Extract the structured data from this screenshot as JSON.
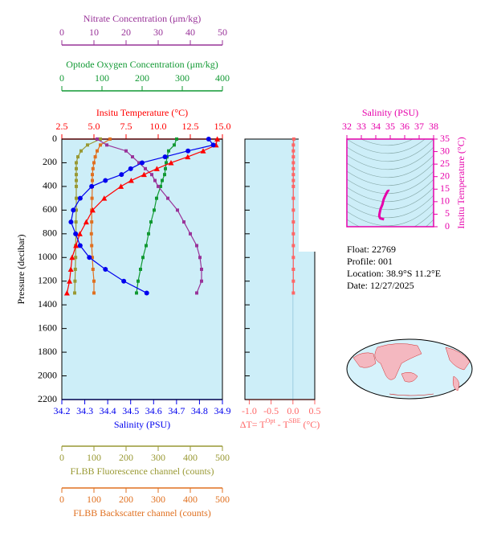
{
  "chart_data": {
    "type": "profile",
    "y_label": "Pressure (decibar)",
    "ylim": [
      0,
      2200
    ],
    "yticks": [
      0,
      200,
      400,
      600,
      800,
      1000,
      1200,
      1400,
      1600,
      1800,
      2000,
      2200
    ],
    "pressure": [
      0,
      50,
      100,
      150,
      200,
      250,
      300,
      350,
      400,
      500,
      600,
      700,
      800,
      900,
      1000,
      1100,
      1200,
      1300
    ],
    "axes": [
      {
        "label": "Nitrate Concentration (μm/kg)",
        "color": "#993399",
        "xlim": [
          0,
          50
        ],
        "xticks": [
          0,
          10,
          20,
          30,
          40,
          50
        ],
        "values": [
          11,
          14,
          20,
          22,
          24,
          26,
          28,
          29,
          30,
          33,
          36,
          38,
          40,
          42,
          43,
          43.5,
          43.5,
          42
        ]
      },
      {
        "label": "Optode Oxygen Concentration (μm/kg)",
        "color": "#119933",
        "xlim": [
          0,
          400
        ],
        "xticks": [
          0,
          100,
          200,
          300,
          400
        ],
        "values": [
          286,
          280,
          266,
          262,
          260,
          258,
          256,
          250,
          246,
          236,
          230,
          222,
          216,
          210,
          202,
          196,
          190,
          186
        ]
      },
      {
        "label": "Insitu Temperature (°C)",
        "color": "#ff0000",
        "xlim": [
          2.5,
          15
        ],
        "xticks": [
          2.5,
          {
            "value": 5,
            "label": "5.0"
          },
          7.5,
          {
            "value": 10,
            "label": "10.0"
          },
          12.5,
          {
            "value": 15,
            "label": "15.0"
          }
        ],
        "values": [
          14.6,
          14.5,
          13.5,
          12.3,
          11.0,
          9.9,
          8.9,
          7.9,
          7.1,
          5.8,
          4.9,
          4.4,
          3.9,
          3.6,
          3.3,
          3.2,
          3.1,
          2.9
        ]
      },
      {
        "label": "Salinity (PSU)",
        "color": "#0000ee",
        "xlim": [
          34.2,
          34.9
        ],
        "xticks": [
          34.2,
          34.3,
          34.4,
          34.5,
          34.6,
          34.7,
          34.8,
          34.9
        ],
        "values": [
          34.84,
          34.86,
          34.75,
          34.65,
          34.55,
          34.5,
          34.46,
          34.39,
          34.33,
          34.28,
          34.25,
          34.24,
          34.26,
          34.28,
          34.32,
          34.39,
          34.47,
          34.57
        ]
      },
      {
        "label": "FLBB Fluorescence channel (counts)",
        "color": "#999933",
        "xlim": [
          0,
          500
        ],
        "xticks": [
          0,
          100,
          200,
          300,
          400,
          500
        ],
        "values": [
          120,
          80,
          60,
          50,
          45,
          45,
          45,
          45,
          45,
          45,
          45,
          44,
          44,
          43,
          43,
          42,
          41,
          40
        ]
      },
      {
        "label": "FLBB Backscatter channel (counts)",
        "color": "#e07020",
        "xlim": [
          0,
          500
        ],
        "xticks": [
          0,
          100,
          200,
          300,
          400,
          500
        ],
        "values": [
          150,
          120,
          110,
          104,
          100,
          97,
          95,
          95,
          95,
          94,
          93,
          93,
          92,
          93,
          95,
          97,
          100,
          100
        ]
      }
    ],
    "delta_t": {
      "label_parts": [
        "ΔT= T",
        "Opt",
        " - T",
        "SBE",
        " (°C)"
      ],
      "color": "#ff6666",
      "xlim": [
        -1.1,
        0.5
      ],
      "xticks": [
        {
          "value": -1,
          "label": "-1.0"
        },
        -0.5,
        {
          "value": 0,
          "label": "0.0"
        },
        0.5
      ],
      "values": [
        0.02,
        0.01,
        0.01,
        0.01,
        0.01,
        0.01,
        0.01,
        0.01,
        0.01,
        0.01,
        0.01,
        0.01,
        0.01,
        0.01,
        0.01,
        0.01,
        0.01,
        0.01
      ]
    },
    "ts": {
      "x_label": "Salinity (PSU)",
      "y_label": "Insitu Temperature (°C)",
      "color": "#e600aa",
      "xlim": [
        32,
        38
      ],
      "xticks": [
        32,
        33,
        34,
        35,
        36,
        37,
        38
      ],
      "ylim": [
        0,
        35
      ],
      "yticks": [
        0,
        5,
        10,
        15,
        20,
        25,
        30,
        35
      ]
    },
    "info": [
      "Float:  22769",
      "Profile:  001",
      "Location:  38.9°S  11.2°E",
      "Date:  12/27/2025"
    ]
  }
}
